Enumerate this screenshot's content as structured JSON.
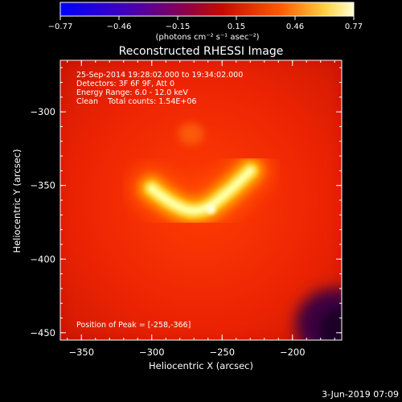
{
  "chart_data": {
    "type": "heatmap",
    "title": "Reconstructed RHESSI Image",
    "xlabel": "Heliocentric X (arcsec)",
    "ylabel": "Heliocentric Y (arcsec)",
    "xlim": [
      -365,
      -165
    ],
    "ylim": [
      -455,
      -265
    ],
    "xticks": [
      -350,
      -300,
      -250,
      -200
    ],
    "yticks": [
      -300,
      -350,
      -400,
      -450
    ],
    "xtick_labels": [
      "−350",
      "−300",
      "−250",
      "−200"
    ],
    "ytick_labels": [
      "−300",
      "−350",
      "−400",
      "−450"
    ],
    "colorbar": {
      "ticks": [
        "−0.77",
        "−0.46",
        "−0.15",
        "0.15",
        "0.46",
        "0.77"
      ],
      "range": [
        -0.77,
        0.77
      ],
      "unit_label": "(photons cm⁻² s⁻¹ asec⁻²)",
      "colors": [
        "#0000ff",
        "#5000a0",
        "#8a0030",
        "#e01000",
        "#ff8a00",
        "#ffff90"
      ]
    },
    "annotations": {
      "time": "25-Sep-2014 19:28:02.000 to 19:34:02.000",
      "detectors": "Detectors: 3F 6F 9F, Att 0",
      "energy": "Energy Range: 6.0 - 12.0 keV",
      "clean": "Clean    Total counts: 1.54E+06",
      "peak": "Position of Peak = [-258,-366]"
    },
    "peak": {
      "x": -258,
      "y": -366
    },
    "source_arc": [
      {
        "x": -300,
        "y": -352
      },
      {
        "x": -285,
        "y": -364
      },
      {
        "x": -265,
        "y": -369
      },
      {
        "x": -245,
        "y": -354
      },
      {
        "x": -230,
        "y": -340
      }
    ],
    "secondary_source": {
      "x": -272,
      "y": -315
    },
    "dark_region": {
      "x": -175,
      "y": -440
    }
  },
  "footer_date": "3-Jun-2019 07:09"
}
